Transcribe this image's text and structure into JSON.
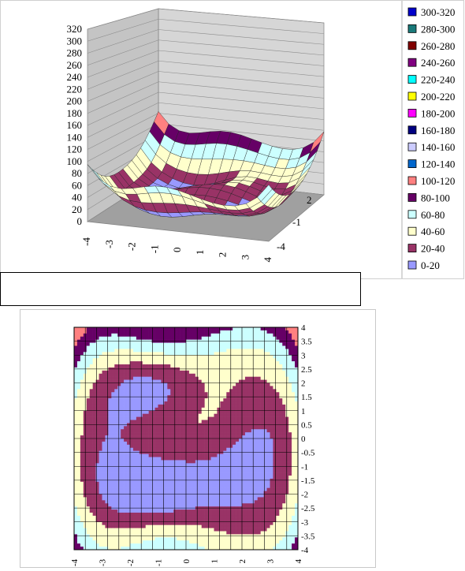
{
  "chart_data": [
    {
      "type": "surface-3d",
      "title": "",
      "xlabel": "",
      "ylabel": "",
      "zlabel": "",
      "z_ticks": [
        0,
        20,
        40,
        60,
        80,
        100,
        120,
        140,
        160,
        180,
        200,
        220,
        240,
        260,
        280,
        300,
        320
      ],
      "zlim": [
        0,
        320
      ],
      "x_ticks": [
        -4,
        -3,
        -2,
        -1,
        0,
        1,
        2,
        3,
        4
      ],
      "y_ticks": [
        -4,
        -1,
        2
      ],
      "legend_position": "right",
      "legend": [
        {
          "label": "300-320",
          "color": "#0000cc"
        },
        {
          "label": "280-300",
          "color": "#1a7a7a"
        },
        {
          "label": "260-280",
          "color": "#800000"
        },
        {
          "label": "240-260",
          "color": "#800080"
        },
        {
          "label": "220-240",
          "color": "#00ffff"
        },
        {
          "label": "200-220",
          "color": "#ffff00"
        },
        {
          "label": "180-200",
          "color": "#ff00ff"
        },
        {
          "label": "160-180",
          "color": "#000080"
        },
        {
          "label": "140-160",
          "color": "#ccccff"
        },
        {
          "label": "120-140",
          "color": "#0066cc"
        },
        {
          "label": "100-120",
          "color": "#ff8080"
        },
        {
          "label": "80-100",
          "color": "#660066"
        },
        {
          "label": "60-80",
          "color": "#ccffff"
        },
        {
          "label": "40-60",
          "color": "#ffffcc"
        },
        {
          "label": "20-40",
          "color": "#993366"
        },
        {
          "label": "0-20",
          "color": "#9999ff"
        }
      ],
      "grid": true
    },
    {
      "type": "contour",
      "title": "",
      "x_ticks": [
        -4,
        -3,
        -2,
        -1,
        0,
        1,
        2,
        3,
        4
      ],
      "y_ticks": [
        4,
        3.5,
        3,
        2.5,
        2,
        1.5,
        1,
        0.5,
        0,
        -0.5,
        -1,
        -1.5,
        -2,
        -2.5,
        -3,
        -3.5,
        -4
      ],
      "xlim": [
        -4,
        4
      ],
      "ylim": [
        -4,
        4
      ],
      "grid": true
    }
  ]
}
